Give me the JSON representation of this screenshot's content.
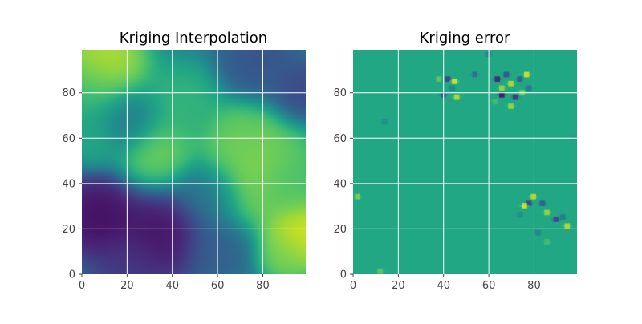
{
  "chart_data": [
    {
      "type": "heatmap",
      "title": "Kriging Interpolation",
      "xlabel": "",
      "ylabel": "",
      "colormap": "viridis",
      "xlim": [
        0,
        99
      ],
      "ylim": [
        0,
        99
      ],
      "xticks": [
        0,
        20,
        40,
        60,
        80
      ],
      "yticks": [
        0,
        20,
        40,
        60,
        80
      ],
      "grid": true,
      "grid_color": "#ffffff",
      "z_range": [
        0,
        1
      ],
      "features": [
        {
          "x": 8,
          "y": 92,
          "level": 0.98,
          "spread": 11
        },
        {
          "x": 2,
          "y": 80,
          "level": 0.62,
          "spread": 10
        },
        {
          "x": 44,
          "y": 76,
          "level": 0.68,
          "spread": 9
        },
        {
          "x": 33,
          "y": 53,
          "level": 0.82,
          "spread": 9
        },
        {
          "x": 78,
          "y": 46,
          "level": 0.86,
          "spread": 14
        },
        {
          "x": 70,
          "y": 60,
          "level": 0.78,
          "spread": 8
        },
        {
          "x": 98,
          "y": 18,
          "level": 1.0,
          "spread": 9
        },
        {
          "x": 92,
          "y": 40,
          "level": 0.7,
          "spread": 8
        },
        {
          "x": 5,
          "y": 60,
          "level": 0.62,
          "spread": 7
        },
        {
          "x": 90,
          "y": 8,
          "level": 0.8,
          "spread": 6
        },
        {
          "x": 8,
          "y": 25,
          "level": 0.0,
          "spread": 10
        },
        {
          "x": 35,
          "y": 18,
          "level": 0.02,
          "spread": 11
        },
        {
          "x": 20,
          "y": 2,
          "level": 0.15,
          "spread": 8
        },
        {
          "x": 78,
          "y": 93,
          "level": 0.25,
          "spread": 9
        },
        {
          "x": 97,
          "y": 80,
          "level": 0.2,
          "spread": 7
        },
        {
          "x": 55,
          "y": 35,
          "level": 0.35,
          "spread": 8
        },
        {
          "x": 60,
          "y": 12,
          "level": 0.3,
          "spread": 8
        },
        {
          "x": 20,
          "y": 68,
          "level": 0.38,
          "spread": 8
        }
      ]
    },
    {
      "type": "heatmap",
      "title": "Kriging error",
      "xlabel": "",
      "ylabel": "",
      "colormap": "viridis",
      "xlim": [
        0,
        99
      ],
      "ylim": [
        0,
        99
      ],
      "xticks": [
        0,
        20,
        40,
        60,
        80
      ],
      "yticks": [
        0,
        20,
        40,
        60,
        80
      ],
      "grid": true,
      "grid_color": "#ffffff",
      "background_level": 0.6,
      "speckles": [
        {
          "x": 42,
          "y": 86,
          "level": 0.2
        },
        {
          "x": 45,
          "y": 85,
          "level": 0.95
        },
        {
          "x": 46,
          "y": 78,
          "level": 0.9
        },
        {
          "x": 40,
          "y": 79,
          "level": 0.3
        },
        {
          "x": 44,
          "y": 82,
          "level": 0.45
        },
        {
          "x": 38,
          "y": 86,
          "level": 0.75
        },
        {
          "x": 64,
          "y": 86,
          "level": 0.1
        },
        {
          "x": 66,
          "y": 82,
          "level": 0.85
        },
        {
          "x": 68,
          "y": 88,
          "level": 0.25
        },
        {
          "x": 70,
          "y": 84,
          "level": 0.9
        },
        {
          "x": 72,
          "y": 78,
          "level": 0.15
        },
        {
          "x": 75,
          "y": 80,
          "level": 0.8
        },
        {
          "x": 77,
          "y": 88,
          "level": 0.95
        },
        {
          "x": 74,
          "y": 86,
          "level": 0.3
        },
        {
          "x": 66,
          "y": 79,
          "level": 0.05
        },
        {
          "x": 78,
          "y": 82,
          "level": 0.4
        },
        {
          "x": 70,
          "y": 74,
          "level": 0.85
        },
        {
          "x": 63,
          "y": 76,
          "level": 0.7
        },
        {
          "x": 80,
          "y": 34,
          "level": 0.9
        },
        {
          "x": 78,
          "y": 31,
          "level": 0.2
        },
        {
          "x": 76,
          "y": 30,
          "level": 0.95
        },
        {
          "x": 84,
          "y": 31,
          "level": 0.3
        },
        {
          "x": 86,
          "y": 27,
          "level": 0.85
        },
        {
          "x": 90,
          "y": 24,
          "level": 0.2
        },
        {
          "x": 95,
          "y": 21,
          "level": 0.9
        },
        {
          "x": 93,
          "y": 25,
          "level": 0.4
        },
        {
          "x": 82,
          "y": 18,
          "level": 0.45
        },
        {
          "x": 86,
          "y": 14,
          "level": 0.7
        },
        {
          "x": 74,
          "y": 26,
          "level": 0.5
        },
        {
          "x": 14,
          "y": 67,
          "level": 0.5
        },
        {
          "x": 2,
          "y": 34,
          "level": 0.8
        },
        {
          "x": 12,
          "y": 1,
          "level": 0.75
        },
        {
          "x": 54,
          "y": 88,
          "level": 0.35
        },
        {
          "x": 60,
          "y": 97,
          "level": 0.45
        },
        {
          "x": 98,
          "y": 60,
          "level": 0.55
        }
      ]
    }
  ]
}
